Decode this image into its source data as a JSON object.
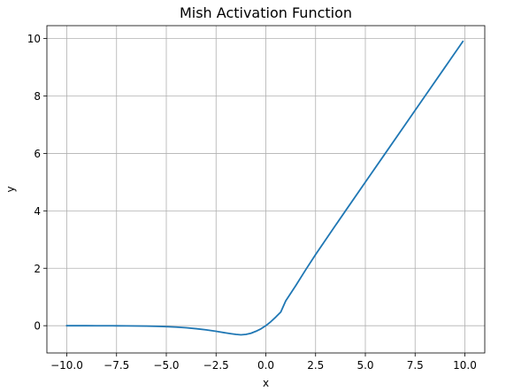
{
  "chart_data": {
    "type": "line",
    "title": "Mish Activation Function",
    "xlabel": "x",
    "ylabel": "y",
    "xlim": [
      -11.0,
      11.0
    ],
    "ylim": [
      -0.95,
      10.45
    ],
    "xticks": [
      -10.0,
      -7.5,
      -5.0,
      -2.5,
      0.0,
      2.5,
      5.0,
      7.5,
      10.0
    ],
    "xtick_labels": [
      "−10.0",
      "−7.5",
      "−5.0",
      "−2.5",
      "0.0",
      "2.5",
      "5.0",
      "7.5",
      "10.0"
    ],
    "yticks": [
      0,
      2,
      4,
      6,
      8,
      10
    ],
    "ytick_labels": [
      "0",
      "2",
      "4",
      "6",
      "8",
      "10"
    ],
    "grid": true,
    "series": [
      {
        "color": "#1f77b4",
        "x": [
          -10.0,
          -9.5,
          -9.0,
          -8.5,
          -8.0,
          -7.5,
          -7.0,
          -6.5,
          -6.0,
          -5.5,
          -5.0,
          -4.5,
          -4.0,
          -3.5,
          -3.0,
          -2.5,
          -2.0,
          -1.75,
          -1.5,
          -1.25,
          -1.0,
          -0.75,
          -0.5,
          -0.25,
          0.0,
          0.25,
          0.5,
          0.75,
          1.0,
          1.5,
          2.0,
          2.5,
          3.0,
          3.5,
          4.0,
          5.0,
          6.0,
          7.0,
          8.0,
          9.0,
          9.9
        ],
        "y": [
          -0.0005,
          -0.0007,
          -0.0011,
          -0.0017,
          -0.0027,
          -0.0041,
          -0.0064,
          -0.0098,
          -0.0149,
          -0.0225,
          -0.0336,
          -0.0496,
          -0.0727,
          -0.1049,
          -0.1456,
          -0.1961,
          -0.2525,
          -0.2797,
          -0.3034,
          -0.319,
          -0.3034,
          -0.2644,
          -0.1957,
          -0.112,
          0.0,
          0.1392,
          0.3,
          0.4759,
          0.8651,
          1.3903,
          1.944,
          2.4762,
          2.9865,
          3.4937,
          3.9974,
          4.9995,
          5.9999,
          7.0,
          8.0,
          9.0,
          9.9
        ]
      }
    ]
  }
}
